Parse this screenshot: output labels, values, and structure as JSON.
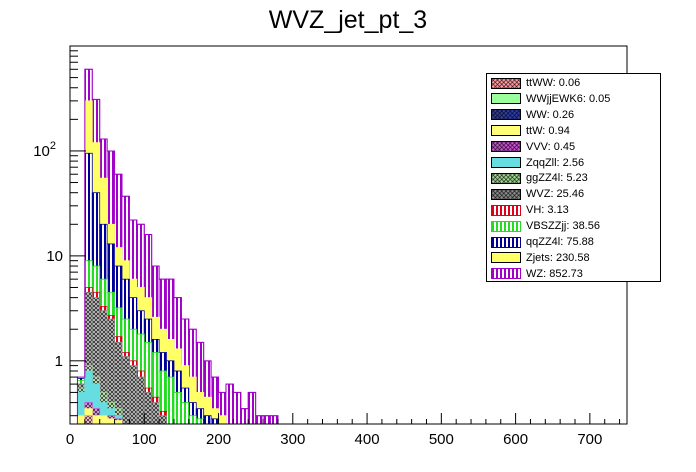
{
  "chart_data": {
    "type": "bar",
    "title": "WVZ_jet_pt_3",
    "xlabel": "",
    "ylabel": "",
    "xlim": [
      0,
      750
    ],
    "ylim": [
      0.25,
      1000
    ],
    "y_scale": "log",
    "grid": false,
    "legend_position": "top-right",
    "bin_width": 10,
    "x_ticks": [
      "0",
      "100",
      "200",
      "300",
      "400",
      "500",
      "600",
      "700"
    ],
    "y_ticks": [
      {
        "value": 1,
        "base": "1",
        "exp": ""
      },
      {
        "value": 10,
        "base": "10",
        "exp": ""
      },
      {
        "value": 100,
        "base": "10",
        "exp": "2"
      }
    ],
    "stack_totals": [
      {
        "x": 10,
        "y": 0.7
      },
      {
        "x": 20,
        "y": 600
      },
      {
        "x": 30,
        "y": 310
      },
      {
        "x": 40,
        "y": 130
      },
      {
        "x": 50,
        "y": 100
      },
      {
        "x": 60,
        "y": 60
      },
      {
        "x": 70,
        "y": 37
      },
      {
        "x": 80,
        "y": 22
      },
      {
        "x": 90,
        "y": 20
      },
      {
        "x": 100,
        "y": 16
      },
      {
        "x": 110,
        "y": 8
      },
      {
        "x": 120,
        "y": 6
      },
      {
        "x": 130,
        "y": 6
      },
      {
        "x": 140,
        "y": 4
      },
      {
        "x": 150,
        "y": 2.5
      },
      {
        "x": 160,
        "y": 2
      },
      {
        "x": 170,
        "y": 1.5
      },
      {
        "x": 180,
        "y": 1
      },
      {
        "x": 190,
        "y": 0.7
      },
      {
        "x": 200,
        "y": 0.5
      },
      {
        "x": 210,
        "y": 0.6
      },
      {
        "x": 220,
        "y": 0.5
      },
      {
        "x": 230,
        "y": 0.35
      },
      {
        "x": 240,
        "y": 0.5
      },
      {
        "x": 250,
        "y": 0.3
      },
      {
        "x": 260,
        "y": 0.3
      },
      {
        "x": 270,
        "y": 0.3
      },
      {
        "x": 280,
        "y": 0.25
      }
    ],
    "series": [
      {
        "name": "ttWW: 0.06",
        "color": "#ff9ba0",
        "pattern": "cross",
        "values": [
          [
            20,
            0.3
          ],
          [
            30,
            0.2
          ]
        ]
      },
      {
        "name": "WWjjEWK6: 0.05",
        "color": "#9bff9b",
        "pattern": "solid",
        "values": [
          [
            20,
            0.3
          ],
          [
            30,
            0.2
          ]
        ]
      },
      {
        "name": "WW: 0.26",
        "color": "#2e3ea8",
        "pattern": "cross",
        "values": [
          [
            20,
            0.3
          ],
          [
            30,
            0.25
          ]
        ]
      },
      {
        "name": "ttW: 0.94",
        "color": "#ffff77",
        "pattern": "solid",
        "values": [
          [
            10,
            0.3
          ],
          [
            20,
            0.35
          ],
          [
            30,
            0.3
          ],
          [
            40,
            0.3
          ],
          [
            50,
            0.28
          ],
          [
            60,
            0.27
          ]
        ]
      },
      {
        "name": "VVV: 0.45",
        "color": "#c84dd3",
        "pattern": "cross",
        "values": [
          [
            10,
            0.3
          ],
          [
            20,
            0.4
          ],
          [
            30,
            0.35
          ],
          [
            40,
            0.3
          ],
          [
            50,
            0.3
          ],
          [
            60,
            0.28
          ]
        ]
      },
      {
        "name": "ZqqZll: 2.56",
        "color": "#66dde0",
        "pattern": "solid",
        "values": [
          [
            10,
            0.5
          ],
          [
            20,
            0.8
          ],
          [
            30,
            0.6
          ],
          [
            40,
            0.4
          ],
          [
            50,
            0.35
          ],
          [
            60,
            0.3
          ]
        ]
      },
      {
        "name": "ggZZ4l: 5.23",
        "color": "#9cd48e",
        "pattern": "cross",
        "values": [
          [
            10,
            0.55
          ],
          [
            20,
            0.9
          ],
          [
            30,
            0.7
          ],
          [
            40,
            0.5
          ],
          [
            50,
            0.4
          ],
          [
            60,
            0.35
          ]
        ]
      },
      {
        "name": "WVZ: 25.46",
        "color": "#888888",
        "pattern": "cross",
        "values": [
          [
            10,
            0.6
          ],
          [
            20,
            4.5
          ],
          [
            30,
            4
          ],
          [
            40,
            3
          ],
          [
            50,
            2.5
          ],
          [
            60,
            1.5
          ],
          [
            70,
            1.1
          ],
          [
            80,
            0.9
          ],
          [
            90,
            0.7
          ],
          [
            100,
            0.5
          ],
          [
            110,
            0.4
          ],
          [
            120,
            0.3
          ]
        ]
      },
      {
        "name": "VH: 3.13",
        "color": "#e0001a",
        "pattern": "vertical",
        "values": [
          [
            10,
            0.6
          ],
          [
            20,
            5
          ],
          [
            30,
            4.5
          ],
          [
            40,
            3.3
          ],
          [
            50,
            2.7
          ],
          [
            60,
            1.7
          ],
          [
            70,
            1.2
          ],
          [
            80,
            1
          ],
          [
            90,
            0.8
          ],
          [
            100,
            0.55
          ],
          [
            110,
            0.45
          ],
          [
            120,
            0.33
          ]
        ]
      },
      {
        "name": "VBSZZjj: 38.56",
        "color": "#22dd22",
        "pattern": "vertical",
        "values": [
          [
            10,
            0.65
          ],
          [
            20,
            9
          ],
          [
            30,
            8
          ],
          [
            40,
            6
          ],
          [
            50,
            4.5
          ],
          [
            60,
            3.2
          ],
          [
            70,
            2.5
          ],
          [
            80,
            2
          ],
          [
            90,
            1.8
          ],
          [
            100,
            1.5
          ],
          [
            110,
            1.2
          ],
          [
            120,
            0.8
          ],
          [
            130,
            0.7
          ],
          [
            140,
            0.5
          ],
          [
            150,
            0.4
          ],
          [
            160,
            0.3
          ],
          [
            170,
            0.28
          ]
        ]
      },
      {
        "name": "qqZZ4l: 75.88",
        "color": "#000099",
        "pattern": "vertical",
        "values": [
          [
            10,
            0.68
          ],
          [
            20,
            95
          ],
          [
            30,
            40
          ],
          [
            40,
            20
          ],
          [
            50,
            13
          ],
          [
            60,
            8
          ],
          [
            70,
            6
          ],
          [
            80,
            4
          ],
          [
            90,
            3
          ],
          [
            100,
            2.5
          ],
          [
            110,
            1.6
          ],
          [
            120,
            1.2
          ],
          [
            130,
            1
          ],
          [
            140,
            0.8
          ],
          [
            150,
            0.55
          ],
          [
            160,
            0.4
          ],
          [
            170,
            0.35
          ],
          [
            180,
            0.3
          ],
          [
            190,
            0.28
          ]
        ]
      },
      {
        "name": "Zjets: 230.58",
        "color": "#ffff66",
        "pattern": "solid",
        "values": [
          [
            10,
            0.7
          ],
          [
            20,
            300
          ],
          [
            30,
            120
          ],
          [
            40,
            55
          ],
          [
            50,
            20
          ],
          [
            60,
            12
          ],
          [
            70,
            9
          ],
          [
            80,
            6
          ],
          [
            90,
            5
          ],
          [
            100,
            4
          ],
          [
            110,
            2.6
          ],
          [
            120,
            2
          ],
          [
            130,
            1.6
          ],
          [
            140,
            1.3
          ],
          [
            150,
            0.9
          ],
          [
            160,
            0.7
          ],
          [
            170,
            0.5
          ],
          [
            180,
            0.45
          ],
          [
            190,
            0.35
          ],
          [
            200,
            0.3
          ]
        ]
      },
      {
        "name": "WZ: 852.73",
        "color": "#a000c8",
        "pattern": "vertical",
        "values": [
          [
            10,
            0.7
          ],
          [
            20,
            600
          ],
          [
            30,
            310
          ],
          [
            40,
            130
          ],
          [
            50,
            100
          ],
          [
            60,
            60
          ],
          [
            70,
            37
          ],
          [
            80,
            22
          ],
          [
            90,
            20
          ],
          [
            100,
            16
          ],
          [
            110,
            8
          ],
          [
            120,
            6
          ],
          [
            130,
            6
          ],
          [
            140,
            4
          ],
          [
            150,
            2.5
          ],
          [
            160,
            2
          ],
          [
            170,
            1.5
          ],
          [
            180,
            1
          ],
          [
            190,
            0.7
          ],
          [
            200,
            0.5
          ],
          [
            210,
            0.6
          ],
          [
            220,
            0.5
          ],
          [
            230,
            0.35
          ],
          [
            240,
            0.5
          ],
          [
            250,
            0.3
          ],
          [
            260,
            0.3
          ],
          [
            270,
            0.3
          ],
          [
            280,
            0.25
          ]
        ]
      }
    ]
  }
}
